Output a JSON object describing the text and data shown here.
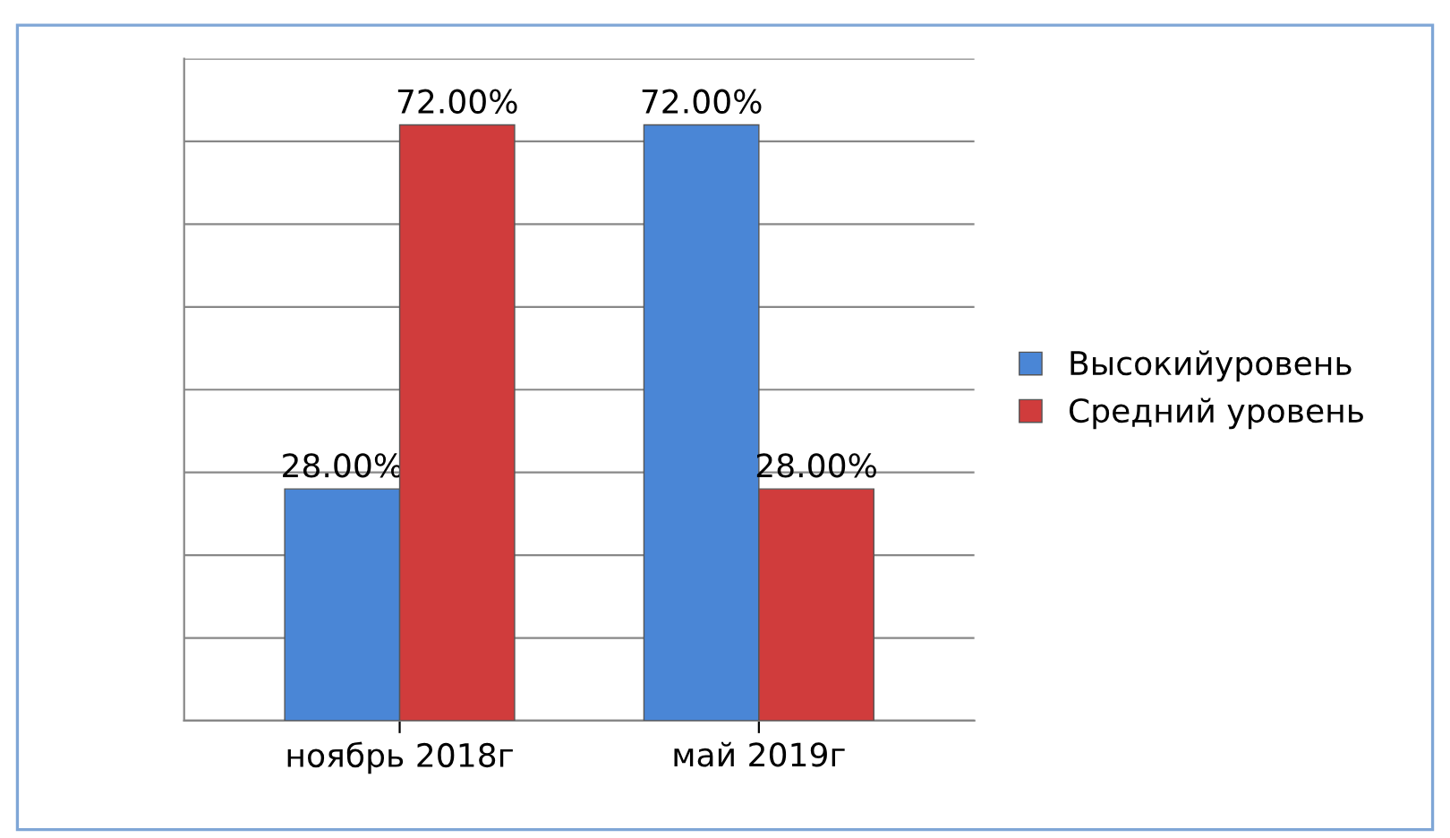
{
  "chart_data": {
    "type": "bar",
    "categories": [
      "ноябрь 2018г",
      "май 2019г"
    ],
    "series": [
      {
        "name": "Высокийуровень",
        "color": "#4a86d6",
        "values": [
          28,
          72
        ],
        "value_labels": [
          "28.00%",
          "72.00%"
        ]
      },
      {
        "name": "Средний уровень",
        "color": "#d03c3c",
        "values": [
          72,
          28
        ],
        "value_labels": [
          "72.00%",
          "28.00%"
        ]
      }
    ],
    "ylim": [
      0,
      80
    ],
    "yticks": [
      {
        "value": 0,
        "label": null
      },
      {
        "value": 10,
        "label": null
      },
      {
        "value": 20,
        "label": null
      },
      {
        "value": 30,
        "label": null
      },
      {
        "value": 40,
        "label": null
      },
      {
        "value": 50,
        "label": null
      },
      {
        "value": 60,
        "label": null
      },
      {
        "value": 70,
        "label": null
      },
      {
        "value": 80,
        "label": null
      }
    ],
    "tick_labels": "x",
    "grid": "y",
    "legend": "right"
  }
}
